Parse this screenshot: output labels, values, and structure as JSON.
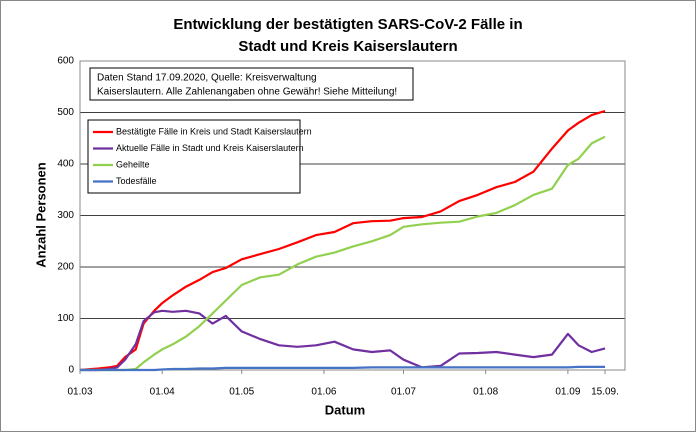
{
  "chart_data": {
    "type": "line",
    "title": [
      "Entwicklung der bestätigten SARS-CoV-2 Fälle in",
      "Stadt und Kreis Kaiserslautern"
    ],
    "annotation": [
      "Daten Stand 17.09.2020, Quelle: Kreisverwaltung",
      "Kaiserslautern. Alle Zahlenangaben ohne Gewähr! Siehe Mitteilung!"
    ],
    "x_label": "Datum",
    "y_label": "Anzahl Personen",
    "x": [
      "01.03",
      "08.03",
      "12.03",
      "15.03",
      "18.03",
      "22.03",
      "25.03",
      "29.03",
      "01.04",
      "05.04",
      "10.04",
      "15.04",
      "20.04",
      "25.04",
      "01.05",
      "08.05",
      "15.05",
      "22.05",
      "29.05",
      "05.06",
      "12.06",
      "19.06",
      "26.06",
      "01.07",
      "08.07",
      "15.07",
      "22.07",
      "29.07",
      "05.08",
      "12.08",
      "19.08",
      "26.08",
      "01.09",
      "05.09",
      "10.09",
      "15.09"
    ],
    "series": [
      {
        "name": "Bestätigte Fälle in Kreis und Stadt Kaiserslautern",
        "color": "#ff0000",
        "values": [
          0,
          3,
          5,
          8,
          25,
          40,
          90,
          115,
          130,
          145,
          162,
          175,
          190,
          198,
          215,
          225,
          235,
          248,
          262,
          268,
          285,
          289,
          290,
          295,
          297,
          308,
          328,
          340,
          355,
          365,
          385,
          430,
          465,
          480,
          495,
          503
        ]
      },
      {
        "name": "Aktuelle Fälle in Stadt und Kreis Kaiserslautern",
        "color": "#7030a0",
        "values": [
          0,
          0,
          2,
          5,
          20,
          50,
          95,
          112,
          115,
          113,
          115,
          110,
          90,
          105,
          75,
          60,
          48,
          45,
          48,
          55,
          40,
          35,
          38,
          20,
          5,
          8,
          32,
          33,
          35,
          30,
          25,
          30,
          70,
          48,
          35,
          42
        ]
      },
      {
        "name": "Geheilte",
        "color": "#92d050",
        "values": [
          0,
          0,
          0,
          0,
          0,
          2,
          15,
          30,
          40,
          50,
          65,
          85,
          110,
          135,
          165,
          180,
          185,
          205,
          220,
          228,
          240,
          250,
          262,
          278,
          283,
          286,
          288,
          298,
          305,
          320,
          340,
          352,
          398,
          410,
          440,
          453
        ]
      },
      {
        "name": "Todesfälle",
        "color": "#4472c4",
        "values": [
          0,
          0,
          0,
          0,
          0,
          0,
          0,
          0,
          1,
          2,
          2,
          3,
          3,
          4,
          4,
          4,
          4,
          4,
          4,
          4,
          4,
          5,
          5,
          5,
          5,
          5,
          5,
          5,
          5,
          5,
          5,
          5,
          5,
          6,
          6,
          6
        ]
      }
    ],
    "xlim": [
      "01.03",
      "15.09"
    ],
    "xticks": [
      "01.03",
      "01.04",
      "01.05",
      "01.06",
      "01.07",
      "01.08",
      "01.09",
      {
        "value": "15.09",
        "label": "15.09."
      }
    ],
    "ylim": [
      0,
      600
    ],
    "yticks": [
      0,
      100,
      200,
      300,
      400,
      500,
      600
    ],
    "grid": true
  }
}
